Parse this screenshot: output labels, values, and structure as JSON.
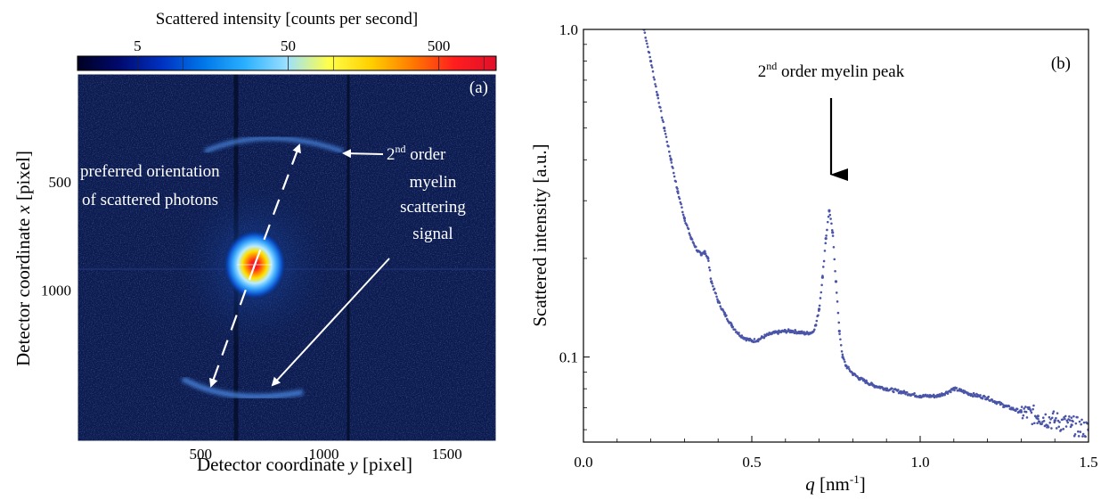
{
  "panel_a": {
    "colorbar": {
      "title": "Scattered intensity [counts per second]",
      "scale": "log",
      "range": [
        2,
        1200
      ],
      "ticks": [
        "5",
        "50",
        "500"
      ],
      "tick_values": [
        5,
        50,
        500
      ],
      "colormap": [
        "#000022",
        "#000a6e",
        "#0030c0",
        "#0076e8",
        "#2ab0ff",
        "#9be0ff",
        "#ffff4a",
        "#ffd000",
        "#ff7a00",
        "#ff1e1e",
        "#e0102a"
      ]
    },
    "panel_label": "(a)",
    "xaxis": {
      "label_prefix": "Detector coordinate ",
      "label_var": "y",
      "label_unit": " [pixel]",
      "range": [
        0,
        1700
      ],
      "ticks": [
        "500",
        "1000",
        "1500"
      ],
      "tick_values": [
        500,
        1000,
        1500
      ]
    },
    "yaxis": {
      "label_prefix": "Detector coordinate ",
      "label_var": "x",
      "label_unit": " [pixel]",
      "range": [
        0,
        1700
      ],
      "ticks": [
        "500",
        "1000"
      ],
      "tick_values": [
        500,
        1000
      ],
      "inverted": true
    },
    "annotations": {
      "orientation_line1": "preferred orientation",
      "orientation_line2": "of scattered photons",
      "myelin_sup": "nd",
      "myelin_lead": "2",
      "myelin_rest": " order",
      "myelin_line2": "myelin",
      "myelin_line3": "scattering",
      "myelin_line4": "signal"
    },
    "colors": {
      "background": "#0b1a4e",
      "ring": "#3f7ad6",
      "arrow": "#ffffff"
    }
  },
  "panel_b": {
    "panel_label": "(b)",
    "peak_label_lead": "2",
    "peak_label_sup": "nd",
    "peak_label_rest": " order myelin peak",
    "series_color": "#4a55a8"
  },
  "chart_data": [
    {
      "type": "heatmap",
      "title": "",
      "xlabel": "Detector coordinate y [pixel]",
      "ylabel": "Detector coordinate x [pixel]",
      "xlim": [
        0,
        1700
      ],
      "ylim": [
        1700,
        0
      ],
      "beam_center": {
        "y": 710,
        "x": 720
      },
      "ring_radius": 570,
      "colorbar_label": "Scattered intensity [counts per second]",
      "colorbar_ticks": [
        5,
        50,
        500
      ]
    },
    {
      "type": "scatter",
      "title": "",
      "xlabel": "q [nm-1]",
      "ylabel": "Scattered intensity [a.u.]",
      "xlim": [
        0.0,
        1.5
      ],
      "ylim": [
        0.055,
        1.0
      ],
      "yscale": "log",
      "xticks": [
        0.0,
        0.5,
        1.0,
        1.5
      ],
      "xtick_labels": [
        "0.0",
        "0.5",
        "1.0",
        "1.5"
      ],
      "yticks": [
        0.1,
        1.0
      ],
      "ytick_labels": [
        "0.1",
        "1.0"
      ],
      "annotation": {
        "text": "2nd order myelin peak",
        "x": 0.73
      },
      "x": [
        0.18,
        0.2,
        0.22,
        0.24,
        0.26,
        0.28,
        0.3,
        0.32,
        0.34,
        0.35,
        0.36,
        0.37,
        0.38,
        0.4,
        0.42,
        0.44,
        0.46,
        0.48,
        0.5,
        0.52,
        0.54,
        0.56,
        0.58,
        0.6,
        0.62,
        0.64,
        0.66,
        0.68,
        0.69,
        0.7,
        0.71,
        0.72,
        0.73,
        0.74,
        0.75,
        0.76,
        0.77,
        0.78,
        0.8,
        0.82,
        0.84,
        0.86,
        0.88,
        0.9,
        0.95,
        1.0,
        1.05,
        1.08,
        1.1,
        1.12,
        1.15,
        1.2,
        1.25,
        1.3,
        1.35,
        1.4,
        1.45,
        1.5
      ],
      "y": [
        1.0,
        0.8,
        0.63,
        0.5,
        0.4,
        0.32,
        0.265,
        0.23,
        0.21,
        0.205,
        0.21,
        0.2,
        0.17,
        0.148,
        0.135,
        0.125,
        0.118,
        0.114,
        0.112,
        0.113,
        0.116,
        0.118,
        0.119,
        0.12,
        0.12,
        0.119,
        0.118,
        0.119,
        0.125,
        0.14,
        0.175,
        0.23,
        0.28,
        0.24,
        0.17,
        0.12,
        0.1,
        0.094,
        0.089,
        0.086,
        0.084,
        0.082,
        0.081,
        0.08,
        0.078,
        0.076,
        0.076,
        0.078,
        0.08,
        0.079,
        0.077,
        0.075,
        0.071,
        0.068,
        0.066,
        0.064,
        0.062,
        0.06
      ]
    }
  ]
}
